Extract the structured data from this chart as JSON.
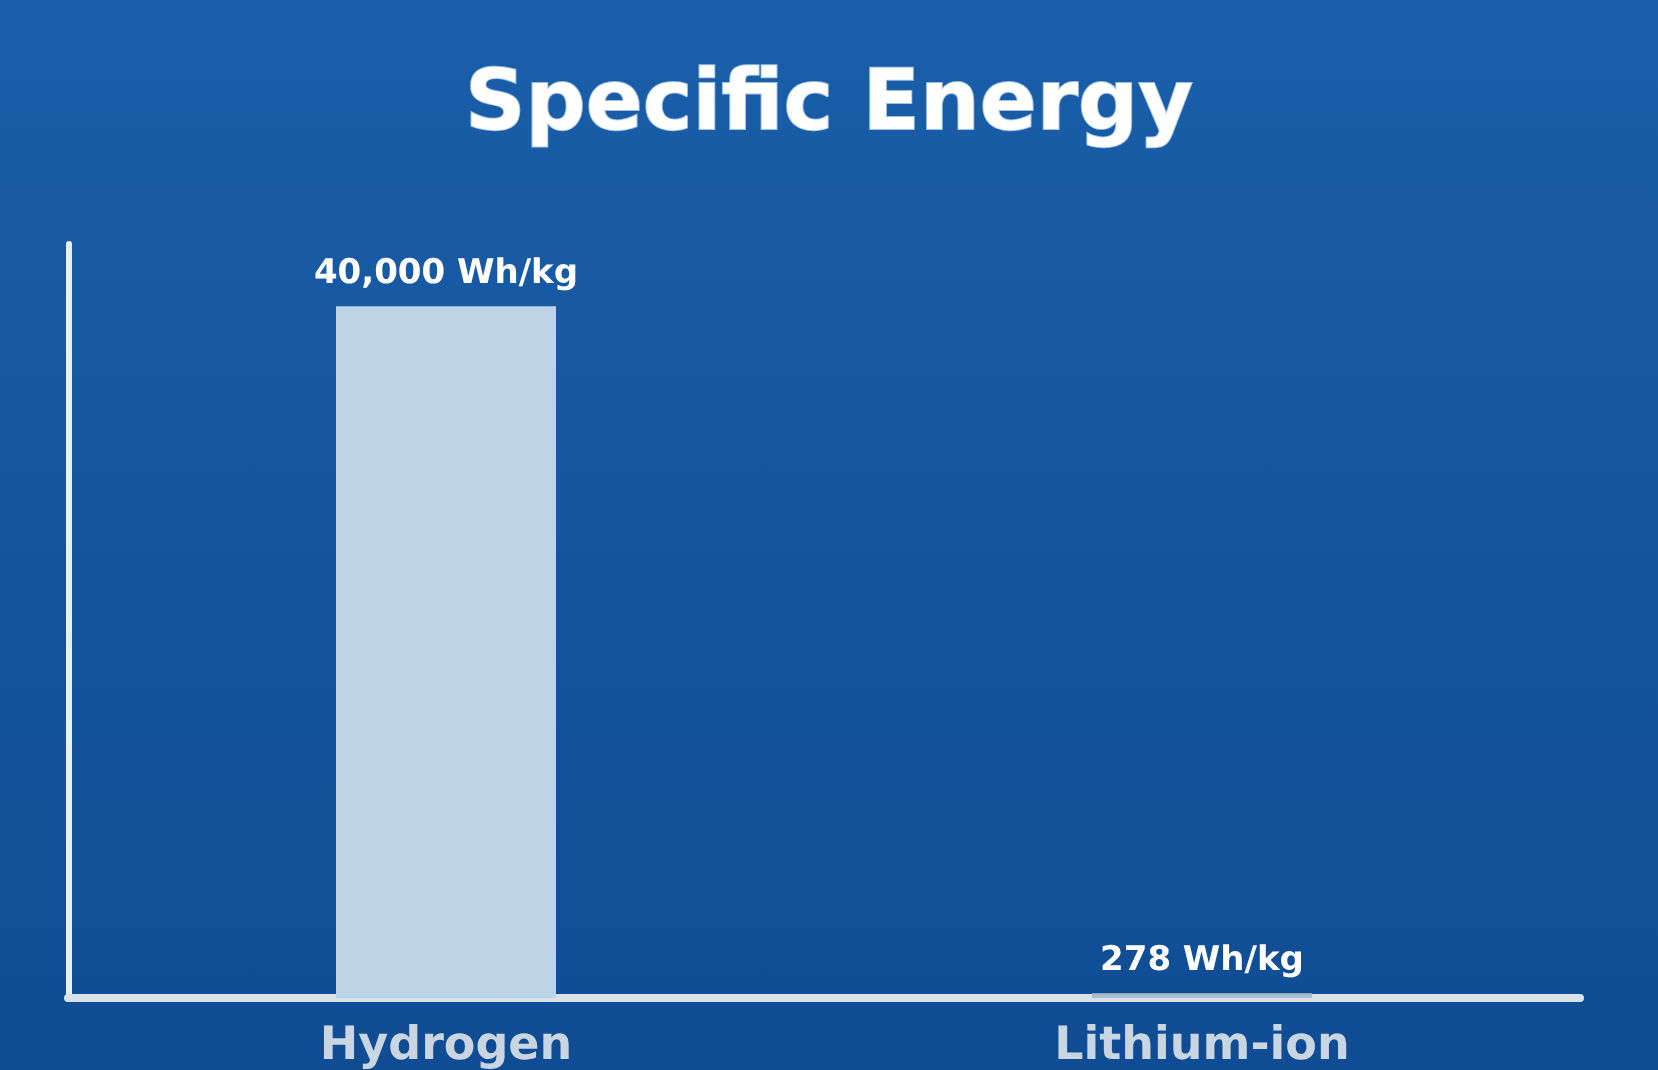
{
  "chart_data": {
    "type": "bar",
    "title": "Specific Energy",
    "categories": [
      "Hydrogen",
      "Lithium-ion"
    ],
    "values": [
      40000,
      278
    ],
    "value_labels": [
      "40,000 Wh/kg",
      "278 Wh/kg"
    ],
    "colors": [
      "#bdd3e6",
      "#a9bdcf"
    ],
    "tick_labels": "x"
  }
}
